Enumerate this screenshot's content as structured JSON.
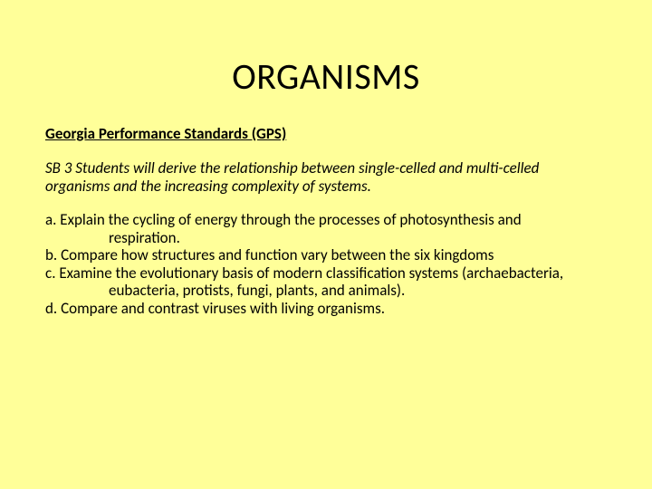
{
  "background_color": "#ffff99",
  "text_color": "#000000",
  "title": "ORGANISMS",
  "title_fontsize": 40,
  "subtitle": "Georgia Performance Standards (GPS)",
  "subtitle_fontsize": 17,
  "standard": "SB 3 Students will derive the relationship between single-celled and multi-celled organisms and the increasing complexity of systems.",
  "body_fontsize": 17,
  "items": [
    {
      "label": "a. Explain the cycling of energy through the processes of photosynthesis and",
      "cont": "respiration."
    },
    {
      "label": "b. Compare how structures and function vary between the six kingdoms",
      "cont": ""
    },
    {
      "label": "c. Examine the evolutionary basis of modern classification systems (archaebacteria,",
      "cont": "eubacteria, protists, fungi, plants, and animals)."
    },
    {
      "label": "d. Compare and contrast viruses with living organisms.",
      "cont": ""
    }
  ]
}
